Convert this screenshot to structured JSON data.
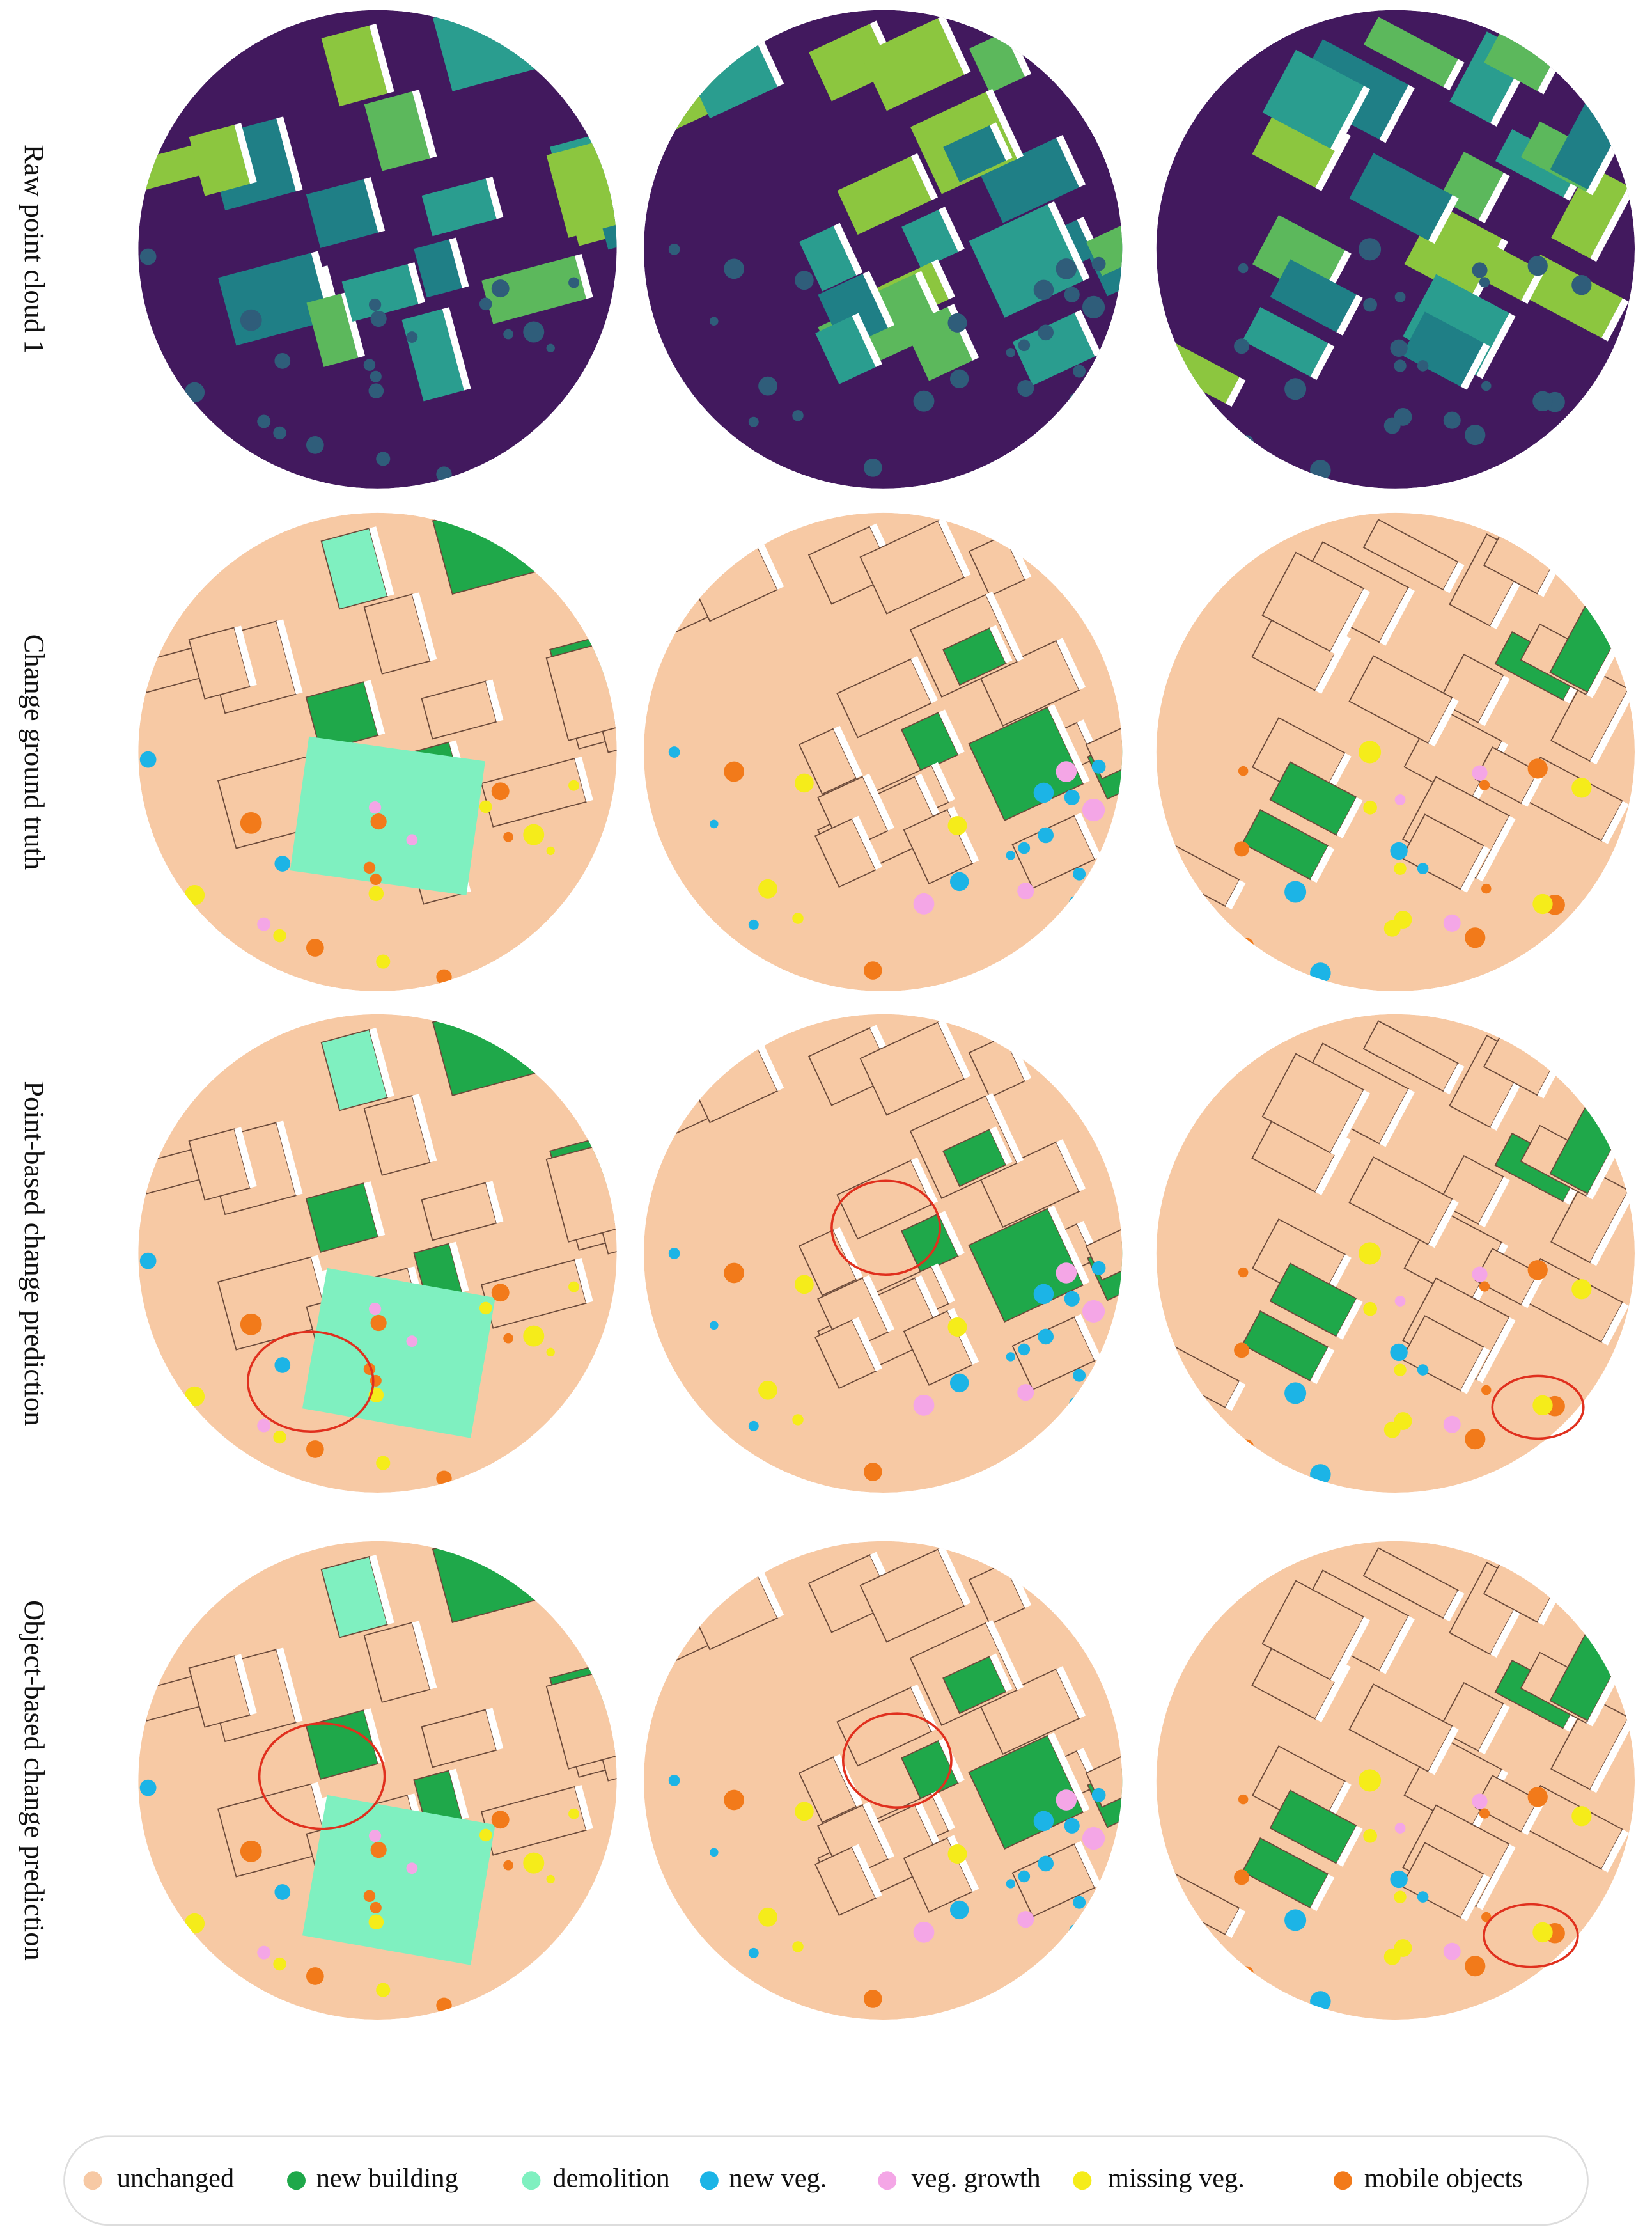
{
  "rows": [
    {
      "label": "Raw point cloud 1"
    },
    {
      "label": "Change ground truth"
    },
    {
      "label": "Point-based change prediction"
    },
    {
      "label": "Object-based change prediction"
    }
  ],
  "legend": [
    {
      "label": "unchanged",
      "color": "#f7c9a4"
    },
    {
      "label": "new building",
      "color": "#1fa84a"
    },
    {
      "label": "demolition",
      "color": "#7ff0c0"
    },
    {
      "label": "new veg.",
      "color": "#1cb4e6"
    },
    {
      "label": "veg. growth",
      "color": "#f4a6e6"
    },
    {
      "label": "missing veg.",
      "color": "#f5ec1a"
    },
    {
      "label": "mobile objects",
      "color": "#f27a1a"
    }
  ]
}
